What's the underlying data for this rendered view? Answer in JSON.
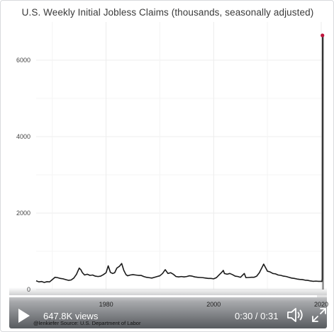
{
  "chart_data": {
    "type": "line",
    "title": "U.S. Weekly Initial Jobless Claims (thousands, seasonally adjusted)",
    "xlabel": "",
    "ylabel": "",
    "xlim": [
      1967,
      2020.4
    ],
    "ylim": [
      0,
      7000
    ],
    "y_ticks": [
      0,
      2000,
      4000,
      6000
    ],
    "x_ticks": [
      1980,
      2000,
      2020
    ],
    "x_tick_labels": [
      "1980",
      "2000",
      "2020"
    ],
    "grid": true,
    "series": [
      {
        "color": "#1a1a1a",
        "points": [
          [
            1967.0,
            230
          ],
          [
            1967.5,
            200
          ],
          [
            1968.0,
            210
          ],
          [
            1968.5,
            185
          ],
          [
            1969.0,
            205
          ],
          [
            1969.5,
            200
          ],
          [
            1970.0,
            260
          ],
          [
            1970.5,
            320
          ],
          [
            1971.0,
            310
          ],
          [
            1971.5,
            290
          ],
          [
            1972.0,
            280
          ],
          [
            1972.5,
            260
          ],
          [
            1973.0,
            240
          ],
          [
            1973.5,
            250
          ],
          [
            1974.0,
            300
          ],
          [
            1974.5,
            400
          ],
          [
            1975.0,
            560
          ],
          [
            1975.3,
            520
          ],
          [
            1975.6,
            440
          ],
          [
            1976.0,
            380
          ],
          [
            1976.5,
            400
          ],
          [
            1977.0,
            370
          ],
          [
            1977.5,
            380
          ],
          [
            1978.0,
            350
          ],
          [
            1978.5,
            340
          ],
          [
            1979.0,
            350
          ],
          [
            1979.5,
            390
          ],
          [
            1980.0,
            440
          ],
          [
            1980.4,
            620
          ],
          [
            1980.8,
            450
          ],
          [
            1981.2,
            420
          ],
          [
            1981.6,
            440
          ],
          [
            1982.0,
            560
          ],
          [
            1982.5,
            610
          ],
          [
            1982.9,
            680
          ],
          [
            1983.3,
            500
          ],
          [
            1983.7,
            390
          ],
          [
            1984.0,
            360
          ],
          [
            1984.5,
            380
          ],
          [
            1985.0,
            390
          ],
          [
            1985.5,
            380
          ],
          [
            1986.0,
            370
          ],
          [
            1986.5,
            370
          ],
          [
            1987.0,
            340
          ],
          [
            1987.5,
            320
          ],
          [
            1988.0,
            310
          ],
          [
            1988.5,
            300
          ],
          [
            1989.0,
            320
          ],
          [
            1989.5,
            340
          ],
          [
            1990.0,
            360
          ],
          [
            1990.5,
            420
          ],
          [
            1991.0,
            520
          ],
          [
            1991.5,
            420
          ],
          [
            1992.0,
            440
          ],
          [
            1992.5,
            400
          ],
          [
            1993.0,
            340
          ],
          [
            1993.5,
            330
          ],
          [
            1994.0,
            340
          ],
          [
            1994.5,
            330
          ],
          [
            1995.0,
            340
          ],
          [
            1995.5,
            360
          ],
          [
            1996.0,
            350
          ],
          [
            1996.5,
            330
          ],
          [
            1997.0,
            320
          ],
          [
            1997.5,
            315
          ],
          [
            1998.0,
            310
          ],
          [
            1998.5,
            300
          ],
          [
            1999.0,
            290
          ],
          [
            1999.5,
            290
          ],
          [
            2000.0,
            280
          ],
          [
            2000.5,
            310
          ],
          [
            2001.0,
            380
          ],
          [
            2001.5,
            450
          ],
          [
            2001.8,
            500
          ],
          [
            2002.0,
            420
          ],
          [
            2002.5,
            400
          ],
          [
            2003.0,
            420
          ],
          [
            2003.5,
            390
          ],
          [
            2004.0,
            350
          ],
          [
            2004.5,
            340
          ],
          [
            2005.0,
            320
          ],
          [
            2005.7,
            420
          ],
          [
            2006.0,
            310
          ],
          [
            2006.5,
            315
          ],
          [
            2007.0,
            320
          ],
          [
            2007.5,
            320
          ],
          [
            2008.0,
            350
          ],
          [
            2008.5,
            440
          ],
          [
            2009.0,
            580
          ],
          [
            2009.3,
            665
          ],
          [
            2009.7,
            560
          ],
          [
            2010.0,
            480
          ],
          [
            2010.5,
            460
          ],
          [
            2011.0,
            420
          ],
          [
            2011.5,
            410
          ],
          [
            2012.0,
            380
          ],
          [
            2012.5,
            370
          ],
          [
            2013.0,
            350
          ],
          [
            2013.5,
            340
          ],
          [
            2014.0,
            320
          ],
          [
            2014.5,
            300
          ],
          [
            2015.0,
            290
          ],
          [
            2015.5,
            275
          ],
          [
            2016.0,
            265
          ],
          [
            2016.5,
            260
          ],
          [
            2017.0,
            245
          ],
          [
            2017.5,
            240
          ],
          [
            2018.0,
            225
          ],
          [
            2018.5,
            215
          ],
          [
            2019.0,
            220
          ],
          [
            2019.5,
            215
          ],
          [
            2020.0,
            215
          ],
          [
            2020.15,
            211
          ],
          [
            2020.2,
            282
          ],
          [
            2020.21,
            3307
          ],
          [
            2020.23,
            6648
          ]
        ]
      }
    ],
    "annotations": [
      "@lenkiefer Source: U.S. Department of Labor"
    ]
  },
  "video": {
    "views": "647.8K views",
    "time": "0:30 / 0:31",
    "progress_fraction": 0.968,
    "play_icon": "play-icon",
    "volume_icon": "volume-icon",
    "fullscreen_icon": "fullscreen-icon"
  },
  "colors": {
    "line": "#1a1a1a",
    "last_point": "#c0143c",
    "grid": "#ececec",
    "spike_fill": "#8c8c8c"
  }
}
